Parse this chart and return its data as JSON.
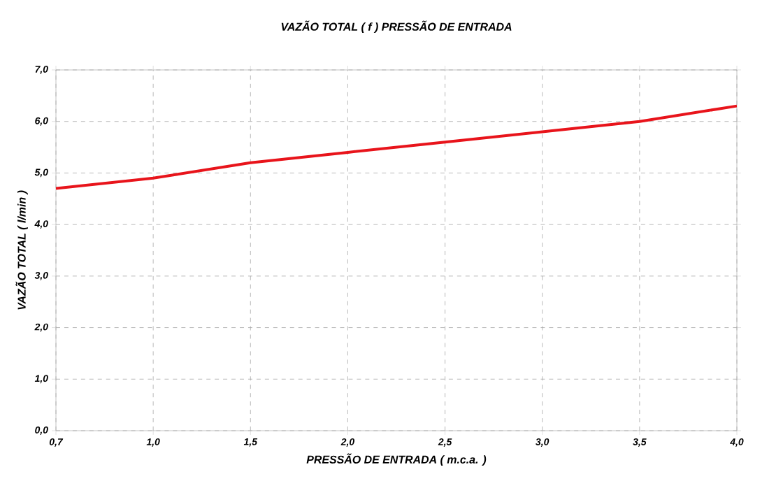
{
  "chart_data": {
    "type": "line",
    "title": "VAZÃO TOTAL ( f ) PRESSÃO DE ENTRADA",
    "xlabel": "PRESSÃO DE ENTRADA ( m.c.a. )",
    "ylabel": "VAZÃO TOTAL ( l/min )",
    "categories": [
      "0,7",
      "1,0",
      "1,5",
      "2,0",
      "2,5",
      "3,0",
      "3,5",
      "4,0"
    ],
    "series": [
      {
        "color": "#e8141b",
        "values": [
          4.7,
          4.9,
          5.2,
          5.4,
          5.6,
          5.8,
          6.0,
          6.3
        ]
      }
    ],
    "ylim": [
      0,
      7
    ],
    "yticks": [
      {
        "value": 0,
        "label": "0,0"
      },
      {
        "value": 1,
        "label": "1,0"
      },
      {
        "value": 2,
        "label": "2,0"
      },
      {
        "value": 3,
        "label": "3,0"
      },
      {
        "value": 4,
        "label": "4,0"
      },
      {
        "value": 5,
        "label": "5,0"
      },
      {
        "value": 6,
        "label": "6,0"
      },
      {
        "value": 7,
        "label": "7,0"
      }
    ],
    "grid": true,
    "marker": "none",
    "line_style": "solid"
  }
}
